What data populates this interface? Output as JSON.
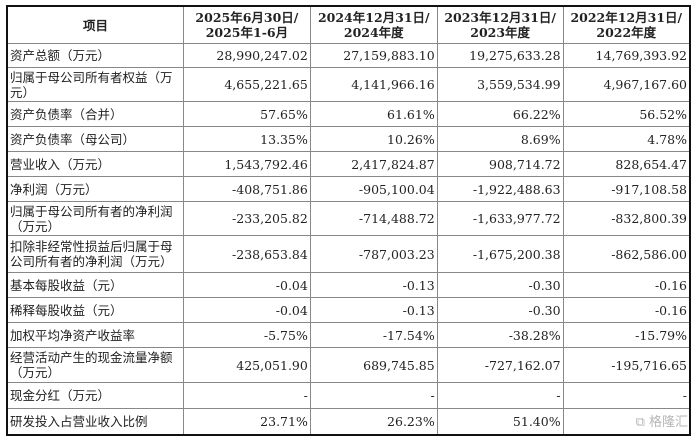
{
  "header": {
    "item": "项目",
    "cols": [
      [
        "2025年6月30日/",
        "2025年1-6月"
      ],
      [
        "2024年12月31日/",
        "2024年度"
      ],
      [
        "2023年12月31日/",
        "2023年度"
      ],
      [
        "2022年12月31日/",
        "2022年度"
      ]
    ]
  },
  "rows": [
    {
      "label": "资产总额（万元）",
      "values": [
        "28,990,247.02",
        "27,159,883.10",
        "19,275,633.28",
        "14,769,393.92"
      ],
      "h": 24
    },
    {
      "label": "归属于母公司所有者权益（万元）",
      "values": [
        "4,655,221.65",
        "4,141,966.16",
        "3,559,534.99",
        "4,967,167.60"
      ],
      "h": 34
    },
    {
      "label": "资产负债率（合并）",
      "values": [
        "57.65%",
        "61.61%",
        "66.22%",
        "56.52%"
      ],
      "h": 25
    },
    {
      "label": "资产负债率（母公司）",
      "values": [
        "13.35%",
        "10.26%",
        "8.69%",
        "4.78%"
      ],
      "h": 25
    },
    {
      "label": "营业收入（万元）",
      "values": [
        "1,543,792.46",
        "2,417,824.87",
        "908,714.72",
        "828,654.47"
      ],
      "h": 25
    },
    {
      "label": "净利润（万元）",
      "values": [
        "-408,751.86",
        "-905,100.04",
        "-1,922,488.63",
        "-917,108.58"
      ],
      "h": 25
    },
    {
      "label": "归属于母公司所有者的净利润（万元）",
      "values": [
        "-233,205.82",
        "-714,488.72",
        "-1,633,977.72",
        "-832,800.39"
      ],
      "h": 34
    },
    {
      "label": "扣除非经常性损益后归属于母公司所有者的净利润（万元）",
      "values": [
        "-238,653.84",
        "-787,003.23",
        "-1,675,200.38",
        "-862,586.00"
      ],
      "h": 37
    },
    {
      "label": "基本每股收益（元）",
      "values": [
        "-0.04",
        "-0.13",
        "-0.30",
        "-0.16"
      ],
      "h": 25
    },
    {
      "label": "稀释每股收益（元）",
      "values": [
        "-0.04",
        "-0.13",
        "-0.30",
        "-0.16"
      ],
      "h": 25
    },
    {
      "label": "加权平均净资产收益率",
      "values": [
        "-5.75%",
        "-17.54%",
        "-38.28%",
        "-15.79%"
      ],
      "h": 25
    },
    {
      "label": "经营活动产生的现金流量净额（万元）",
      "values": [
        "425,051.90",
        "689,745.85",
        "-727,162.07",
        "-195,716.65"
      ],
      "h": 35
    },
    {
      "label": "现金分红（万元）",
      "values": [
        "-",
        "-",
        "-",
        "-"
      ],
      "h": 26
    },
    {
      "label": "研发投入占营业收入比例",
      "values": [
        "23.71%",
        "26.23%",
        "51.40%",
        ""
      ],
      "h": 26
    }
  ],
  "watermark": "格隆汇"
}
